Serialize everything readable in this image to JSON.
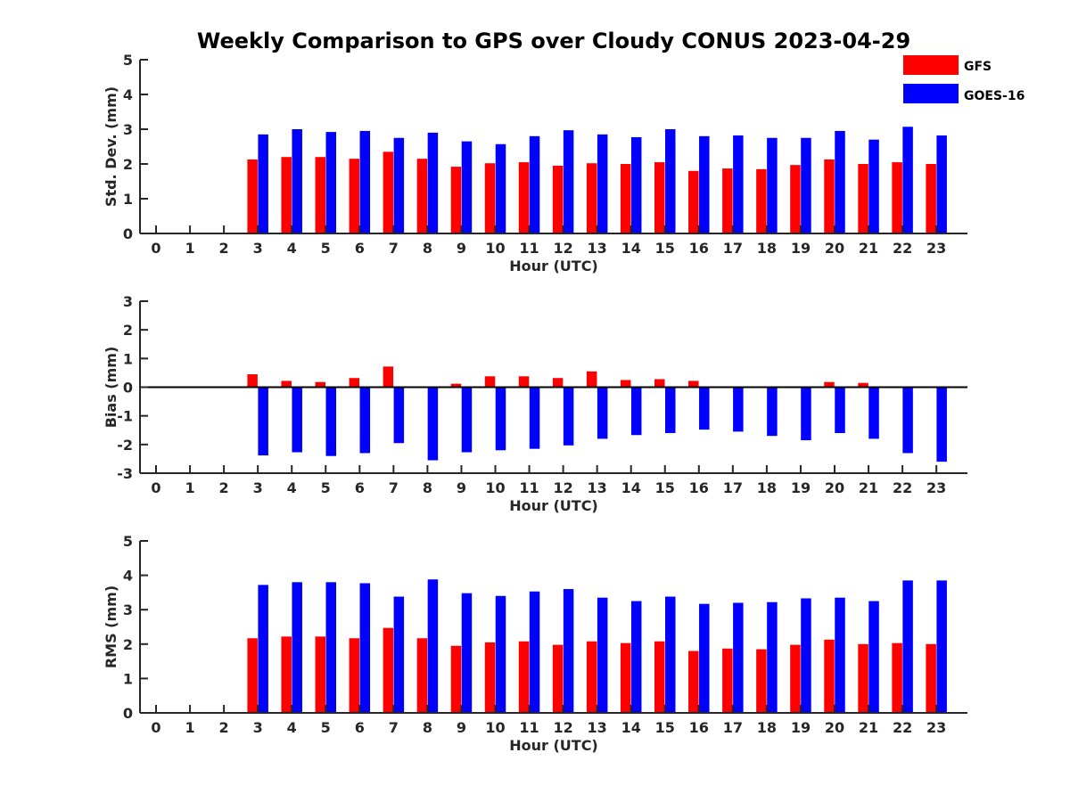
{
  "title": "Weekly Comparison to GPS over Cloudy CONUS 2023-04-29",
  "legend": [
    {
      "label": "GFS",
      "color": "#ff0000"
    },
    {
      "label": "GOES-16",
      "color": "#0000ff"
    }
  ],
  "chart_data": [
    {
      "type": "bar",
      "id": "stddev",
      "xlabel": "Hour (UTC)",
      "ylabel": "Std. Dev. (mm)",
      "ylim": [
        0,
        5
      ],
      "yticks": [
        0,
        1,
        2,
        3,
        4,
        5
      ],
      "categories": [
        "0",
        "1",
        "2",
        "3",
        "4",
        "5",
        "6",
        "7",
        "8",
        "9",
        "10",
        "11",
        "12",
        "13",
        "14",
        "15",
        "16",
        "17",
        "18",
        "19",
        "20",
        "21",
        "22",
        "23"
      ],
      "series": [
        {
          "name": "GFS",
          "color": "#ff0000",
          "values": [
            null,
            null,
            null,
            2.13,
            2.2,
            2.2,
            2.15,
            2.35,
            2.15,
            1.92,
            2.02,
            2.05,
            1.95,
            2.02,
            2.0,
            2.05,
            1.8,
            1.87,
            1.85,
            1.97,
            2.13,
            2.0,
            2.05,
            2.0
          ]
        },
        {
          "name": "GOES-16",
          "color": "#0000ff",
          "values": [
            null,
            null,
            null,
            2.85,
            3.0,
            2.92,
            2.95,
            2.75,
            2.9,
            2.65,
            2.57,
            2.8,
            2.97,
            2.85,
            2.77,
            3.0,
            2.8,
            2.82,
            2.75,
            2.75,
            2.95,
            2.7,
            3.07,
            2.82
          ]
        }
      ]
    },
    {
      "type": "bar",
      "id": "bias",
      "xlabel": "Hour (UTC)",
      "ylabel": "Bias (mm)",
      "ylim": [
        -3,
        3
      ],
      "yticks": [
        -3,
        -2,
        -1,
        0,
        1,
        2,
        3
      ],
      "categories": [
        "0",
        "1",
        "2",
        "3",
        "4",
        "5",
        "6",
        "7",
        "8",
        "9",
        "10",
        "11",
        "12",
        "13",
        "14",
        "15",
        "16",
        "17",
        "18",
        "19",
        "20",
        "21",
        "22",
        "23"
      ],
      "series": [
        {
          "name": "GFS",
          "color": "#ff0000",
          "values": [
            null,
            null,
            null,
            0.45,
            0.22,
            0.18,
            0.32,
            0.72,
            0.0,
            0.12,
            0.38,
            0.38,
            0.32,
            0.55,
            0.25,
            0.28,
            0.22,
            0.03,
            -0.02,
            0.0,
            0.18,
            0.15,
            0.03,
            0.0
          ]
        },
        {
          "name": "GOES-16",
          "color": "#0000ff",
          "values": [
            null,
            null,
            null,
            -2.38,
            -2.27,
            -2.4,
            -2.3,
            -1.95,
            -2.55,
            -2.27,
            -2.2,
            -2.15,
            -2.03,
            -1.8,
            -1.67,
            -1.6,
            -1.48,
            -1.55,
            -1.7,
            -1.85,
            -1.6,
            -1.8,
            -2.3,
            -2.6
          ]
        }
      ]
    },
    {
      "type": "bar",
      "id": "rms",
      "xlabel": "Hour (UTC)",
      "ylabel": "RMS (mm)",
      "ylim": [
        0,
        5
      ],
      "yticks": [
        0,
        1,
        2,
        3,
        4,
        5
      ],
      "categories": [
        "0",
        "1",
        "2",
        "3",
        "4",
        "5",
        "6",
        "7",
        "8",
        "9",
        "10",
        "11",
        "12",
        "13",
        "14",
        "15",
        "16",
        "17",
        "18",
        "19",
        "20",
        "21",
        "22",
        "23"
      ],
      "series": [
        {
          "name": "GFS",
          "color": "#ff0000",
          "values": [
            null,
            null,
            null,
            2.17,
            2.22,
            2.22,
            2.17,
            2.47,
            2.17,
            1.95,
            2.05,
            2.08,
            1.98,
            2.08,
            2.03,
            2.08,
            1.8,
            1.87,
            1.85,
            1.98,
            2.13,
            2.0,
            2.03,
            2.0
          ]
        },
        {
          "name": "GOES-16",
          "color": "#0000ff",
          "values": [
            null,
            null,
            null,
            3.72,
            3.8,
            3.8,
            3.77,
            3.38,
            3.88,
            3.48,
            3.4,
            3.53,
            3.6,
            3.35,
            3.25,
            3.38,
            3.17,
            3.2,
            3.22,
            3.33,
            3.35,
            3.25,
            3.85,
            3.85
          ]
        }
      ]
    }
  ]
}
